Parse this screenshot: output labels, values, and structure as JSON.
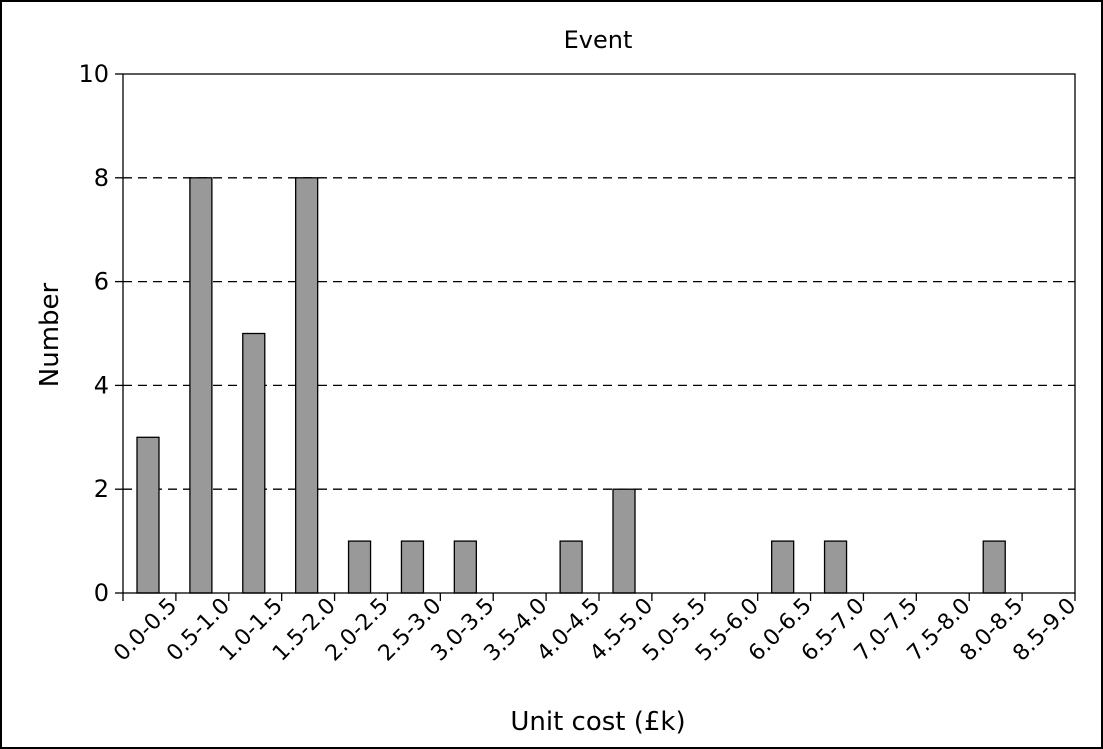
{
  "chart_data": {
    "type": "bar",
    "title": "Event",
    "xlabel": "Unit cost (£k)",
    "ylabel": "Number",
    "categories": [
      "0.0-0.5",
      "0.5-1.0",
      "1.0-1.5",
      "1.5-2.0",
      "2.0-2.5",
      "2.5-3.0",
      "3.0-3.5",
      "3.5-4.0",
      "4.0-4.5",
      "4.5-5.0",
      "5.0-5.5",
      "5.5-6.0",
      "6.0-6.5",
      "6.5-7.0",
      "7.0-7.5",
      "7.5-8.0",
      "8.0-8.5",
      "8.5-9.0"
    ],
    "values": [
      3,
      8,
      5,
      8,
      1,
      1,
      1,
      0,
      1,
      2,
      0,
      0,
      1,
      1,
      0,
      0,
      1,
      0
    ],
    "ylim": [
      0,
      10
    ],
    "yticks": [
      0,
      2,
      4,
      6,
      8,
      10
    ],
    "grid": "horizontal dashed",
    "bar_color": "#999999",
    "bar_stroke": "#000000"
  }
}
